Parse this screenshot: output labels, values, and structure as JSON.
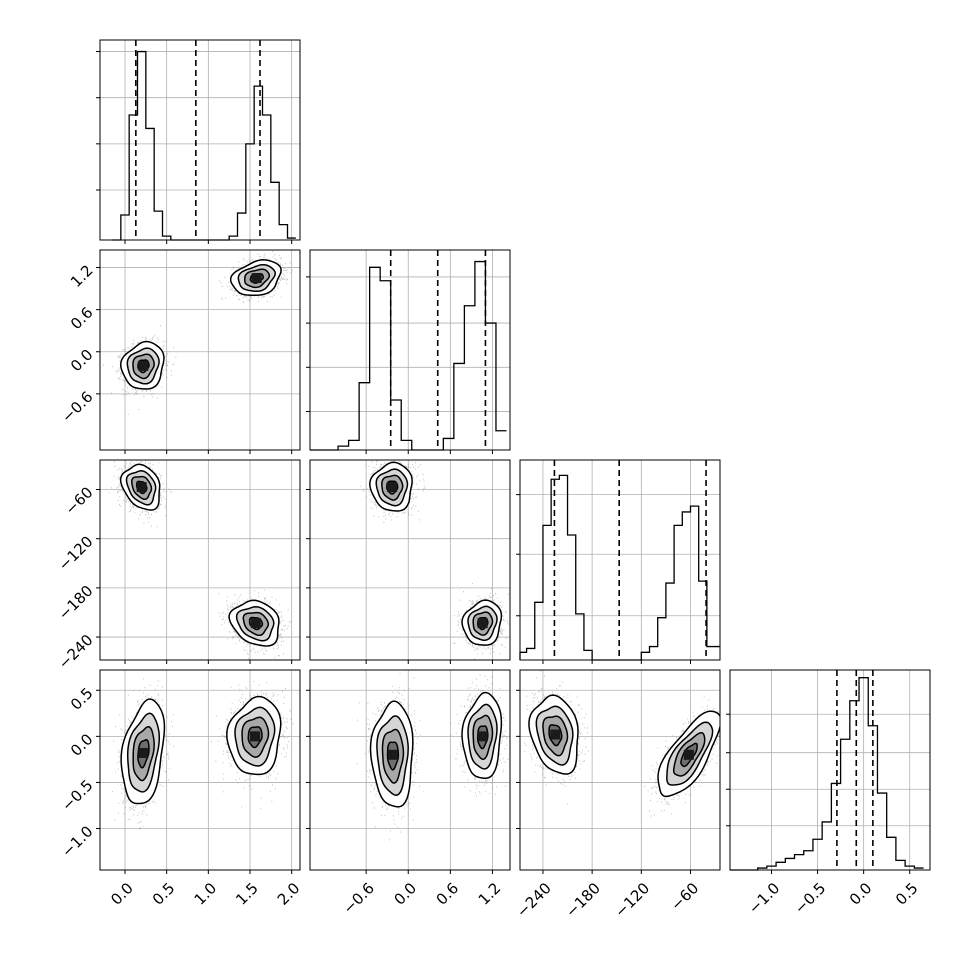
{
  "chart_data": {
    "type": "corner",
    "n_params": 4,
    "grid": true,
    "colors": {
      "line": "#000000",
      "grid": "#b0b0b0",
      "points": "#555555",
      "fill": "#7f7f7f"
    },
    "params": [
      {
        "range": [
          -0.3,
          2.1
        ],
        "ticks": [
          "0.0",
          "0.5",
          "1.0",
          "1.5",
          "2.0"
        ],
        "tick_values": [
          0.0,
          0.5,
          1.0,
          1.5,
          2.0
        ],
        "quantiles": [
          0.13,
          0.85,
          1.62
        ]
      },
      {
        "range": [
          -1.4,
          1.45
        ],
        "ticks": [
          "−0.6",
          "0.0",
          "0.6",
          "1.2"
        ],
        "tick_values": [
          -0.6,
          0.0,
          0.6,
          1.2
        ],
        "quantiles": [
          -0.25,
          0.42,
          1.1
        ]
      },
      {
        "range": [
          -268,
          -24
        ],
        "ticks": [
          "−240",
          "−180",
          "−120",
          "−60"
        ],
        "tick_values": [
          -240,
          -180,
          -120,
          -60
        ],
        "quantiles": [
          -226,
          -147,
          -41
        ]
      },
      {
        "range": [
          -1.45,
          0.72
        ],
        "ticks": [
          "−1.0",
          "−0.5",
          "0.0",
          "0.5"
        ],
        "tick_values": [
          -1.0,
          -0.5,
          0.0,
          0.5
        ],
        "quantiles": [
          -0.29,
          -0.08,
          0.1
        ]
      }
    ],
    "histograms": [
      {
        "param": 0,
        "bins": [
          -0.15,
          -0.05,
          0.05,
          0.15,
          0.25,
          0.35,
          0.45,
          0.55,
          0.65,
          0.75,
          0.85,
          0.95,
          1.05,
          1.15,
          1.25,
          1.35,
          1.45,
          1.55,
          1.65,
          1.75,
          1.85,
          1.95,
          2.05
        ],
        "counts": [
          0,
          0.13,
          0.65,
          0.98,
          0.58,
          0.15,
          0.02,
          0,
          0,
          0,
          0,
          0,
          0,
          0,
          0.02,
          0.14,
          0.5,
          0.8,
          0.65,
          0.3,
          0.08,
          0.01
        ],
        "ymax": 1.0,
        "ygrid": [
          0.26,
          0.5,
          0.74,
          0.98
        ]
      },
      {
        "param": 1,
        "bins": [
          -1.45,
          -1.3,
          -1.15,
          -1.0,
          -0.85,
          -0.7,
          -0.55,
          -0.4,
          -0.25,
          -0.1,
          0.05,
          0.2,
          0.35,
          0.5,
          0.65,
          0.8,
          0.95,
          1.1,
          1.25,
          1.4
        ],
        "counts": [
          0,
          0,
          0,
          0.02,
          0.05,
          0.35,
          0.95,
          0.88,
          0.26,
          0.05,
          0,
          0,
          0,
          0.06,
          0.45,
          0.75,
          0.98,
          0.66,
          0.1
        ],
        "ymax": 1.0,
        "ygrid": [
          0.2,
          0.43,
          0.66,
          0.9
        ]
      },
      {
        "param": 2,
        "bins": [
          -270,
          -260,
          -250,
          -240,
          -230,
          -220,
          -210,
          -200,
          -190,
          -180,
          -170,
          -160,
          -150,
          -140,
          -130,
          -120,
          -110,
          -100,
          -90,
          -80,
          -70,
          -60,
          -50,
          -40,
          -30,
          -20
        ],
        "counts": [
          0.04,
          0.06,
          0.3,
          0.7,
          0.94,
          0.96,
          0.65,
          0.24,
          0.05,
          0,
          0,
          0,
          0,
          0,
          0,
          0.04,
          0.07,
          0.22,
          0.4,
          0.7,
          0.77,
          0.8,
          0.41,
          0.07,
          0.07
        ],
        "ymax": 1.0,
        "ygrid": [
          0.23,
          0.55,
          0.86
        ]
      },
      {
        "param": 3,
        "bins": [
          -1.45,
          -1.35,
          -1.25,
          -1.15,
          -1.05,
          -0.95,
          -0.85,
          -0.75,
          -0.65,
          -0.55,
          -0.45,
          -0.35,
          -0.25,
          -0.15,
          -0.05,
          0.05,
          0.15,
          0.25,
          0.35,
          0.45,
          0.55,
          0.65
        ],
        "counts": [
          0,
          0,
          0,
          0.01,
          0.02,
          0.04,
          0.06,
          0.08,
          0.1,
          0.16,
          0.25,
          0.45,
          0.68,
          0.88,
          1.0,
          0.75,
          0.4,
          0.17,
          0.05,
          0.02,
          0.01
        ],
        "ymax": 1.0,
        "ygrid": [
          0.23,
          0.42,
          0.61,
          0.81
        ]
      }
    ],
    "pairs": [
      {
        "x": 0,
        "y": 1,
        "clusters": [
          {
            "mx": 0.22,
            "my": -0.2,
            "sx": 0.12,
            "sy": 0.16,
            "rho": 0.1,
            "n": 1400
          },
          {
            "mx": 1.58,
            "my": 1.05,
            "sx": 0.14,
            "sy": 0.12,
            "rho": 0.25,
            "n": 1400
          }
        ]
      },
      {
        "x": 0,
        "y": 2,
        "clusters": [
          {
            "mx": 0.2,
            "my": -57,
            "sx": 0.11,
            "sy": 13,
            "rho": -0.25,
            "n": 1400
          },
          {
            "mx": 1.57,
            "my": -223,
            "sx": 0.14,
            "sy": 13,
            "rho": -0.2,
            "n": 1400
          }
        ]
      },
      {
        "x": 1,
        "y": 2,
        "clusters": [
          {
            "mx": -0.23,
            "my": -57,
            "sx": 0.14,
            "sy": 14,
            "rho": 0.0,
            "n": 1400
          },
          {
            "mx": 1.06,
            "my": -223,
            "sx": 0.13,
            "sy": 13,
            "rho": 0.1,
            "n": 1400
          }
        ]
      },
      {
        "x": 0,
        "y": 3,
        "clusters": [
          {
            "mx": 0.22,
            "my": -0.18,
            "sx": 0.12,
            "sy": 0.27,
            "rho": 0.3,
            "n": 1400
          },
          {
            "mx": 1.56,
            "my": 0.0,
            "sx": 0.15,
            "sy": 0.2,
            "rho": 0.1,
            "n": 1400
          }
        ]
      },
      {
        "x": 1,
        "y": 3,
        "clusters": [
          {
            "mx": -0.22,
            "my": -0.2,
            "sx": 0.14,
            "sy": 0.27,
            "rho": 0.0,
            "n": 1400
          },
          {
            "mx": 1.06,
            "my": 0.0,
            "sx": 0.13,
            "sy": 0.22,
            "rho": 0.1,
            "n": 1400
          }
        ]
      },
      {
        "x": 2,
        "y": 3,
        "clusters": [
          {
            "mx": -225,
            "my": 0.02,
            "sx": 14,
            "sy": 0.2,
            "rho": -0.2,
            "n": 1400
          },
          {
            "mx": -62,
            "my": -0.2,
            "sx": 18,
            "sy": 0.22,
            "rho": 0.72,
            "n": 1400
          }
        ]
      }
    ]
  }
}
